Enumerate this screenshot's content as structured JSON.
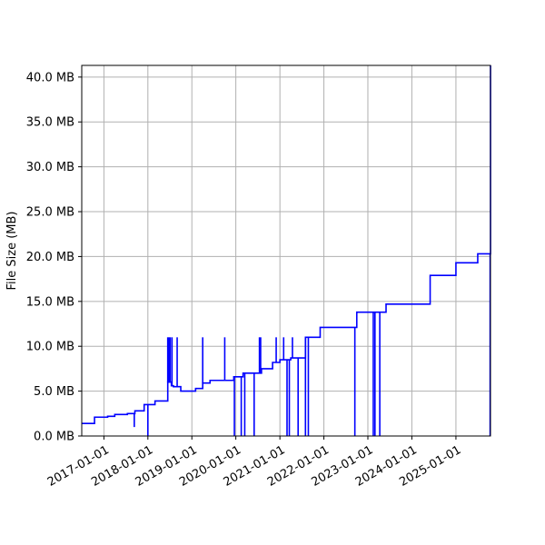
{
  "chart_data": {
    "type": "line",
    "xlabel": "",
    "ylabel": "File Size (MB)",
    "x_range": [
      "2016-07-01",
      "2025-10-15"
    ],
    "ylim": [
      0,
      41.3
    ],
    "yticks": [
      {
        "value": 0,
        "label": "0.0 MB"
      },
      {
        "value": 5,
        "label": "5.0 MB"
      },
      {
        "value": 10,
        "label": "10.0 MB"
      },
      {
        "value": 15,
        "label": "15.0 MB"
      },
      {
        "value": 20,
        "label": "20.0 MB"
      },
      {
        "value": 25,
        "label": "25.0 MB"
      },
      {
        "value": 30,
        "label": "30.0 MB"
      },
      {
        "value": 35,
        "label": "35.0 MB"
      },
      {
        "value": 40,
        "label": "40.0 MB"
      }
    ],
    "xticks": [
      {
        "value": "2017-01-01",
        "label": "2017-01-01"
      },
      {
        "value": "2018-01-01",
        "label": "2018-01-01"
      },
      {
        "value": "2019-01-01",
        "label": "2019-01-01"
      },
      {
        "value": "2020-01-01",
        "label": "2020-01-01"
      },
      {
        "value": "2021-01-01",
        "label": "2021-01-01"
      },
      {
        "value": "2022-01-01",
        "label": "2022-01-01"
      },
      {
        "value": "2023-01-01",
        "label": "2023-01-01"
      },
      {
        "value": "2024-01-01",
        "label": "2024-01-01"
      },
      {
        "value": "2025-01-01",
        "label": "2025-01-01"
      }
    ],
    "grid": true,
    "line_color": "#0000ff",
    "series": [
      {
        "step": "post",
        "points": [
          [
            "2016-07-01",
            1.4
          ],
          [
            "2016-10-15",
            2.1
          ],
          [
            "2017-02-01",
            2.2
          ],
          [
            "2017-04-01",
            2.4
          ],
          [
            "2017-07-15",
            2.5
          ],
          [
            "2017-09-15",
            2.8
          ],
          [
            "2017-12-01",
            3.5
          ],
          [
            "2018-03-01",
            3.9
          ],
          [
            "2018-06-15",
            6.0
          ],
          [
            "2018-07-15",
            5.6
          ],
          [
            "2018-08-01",
            5.5
          ],
          [
            "2018-10-01",
            5.0
          ],
          [
            "2019-02-01",
            5.3
          ],
          [
            "2019-04-01",
            5.9
          ],
          [
            "2019-06-01",
            6.2
          ],
          [
            "2019-12-15",
            6.6
          ],
          [
            "2020-03-01",
            7.0
          ],
          [
            "2020-08-01",
            7.5
          ],
          [
            "2020-11-01",
            8.2
          ],
          [
            "2021-01-01",
            8.5
          ],
          [
            "2021-04-01",
            8.7
          ],
          [
            "2021-08-01",
            11.0
          ],
          [
            "2021-12-01",
            12.1
          ],
          [
            "2022-10-01",
            13.8
          ],
          [
            "2023-06-01",
            14.7
          ],
          [
            "2024-06-01",
            17.9
          ],
          [
            "2025-01-01",
            19.3
          ],
          [
            "2025-07-01",
            20.3
          ],
          [
            "2025-10-10",
            20.3
          ],
          [
            "2025-10-15",
            41.3
          ]
        ],
        "spikes": [
          {
            "date": "2017-09-10",
            "value": 1.0
          },
          {
            "date": "2018-01-01",
            "value": 0.0
          },
          {
            "date": "2018-06-15",
            "value": 11.0
          },
          {
            "date": "2018-06-25",
            "value": 11.0
          },
          {
            "date": "2018-07-05",
            "value": 11.0
          },
          {
            "date": "2018-07-20",
            "value": 11.0
          },
          {
            "date": "2018-09-01",
            "value": 11.0
          },
          {
            "date": "2019-04-01",
            "value": 11.0
          },
          {
            "date": "2019-10-01",
            "value": 11.0
          },
          {
            "date": "2019-12-20",
            "value": 0.0
          },
          {
            "date": "2020-02-15",
            "value": 0.0
          },
          {
            "date": "2020-03-15",
            "value": 0.0
          },
          {
            "date": "2020-06-01",
            "value": 0.0
          },
          {
            "date": "2020-07-15",
            "value": 11.0
          },
          {
            "date": "2020-07-25",
            "value": 11.0
          },
          {
            "date": "2020-12-01",
            "value": 11.0
          },
          {
            "date": "2021-02-01",
            "value": 11.0
          },
          {
            "date": "2021-03-01",
            "value": 0.0
          },
          {
            "date": "2021-03-20",
            "value": 0.0
          },
          {
            "date": "2021-04-15",
            "value": 11.0
          },
          {
            "date": "2021-06-01",
            "value": 0.0
          },
          {
            "date": "2021-08-01",
            "value": 0.0
          },
          {
            "date": "2021-08-25",
            "value": 0.0
          },
          {
            "date": "2022-09-15",
            "value": 0.0
          },
          {
            "date": "2023-02-15",
            "value": 0.0
          },
          {
            "date": "2023-03-01",
            "value": 0.0
          },
          {
            "date": "2023-04-10",
            "value": 0.0
          },
          {
            "date": "2025-10-12",
            "value": 0.0
          }
        ]
      }
    ]
  }
}
